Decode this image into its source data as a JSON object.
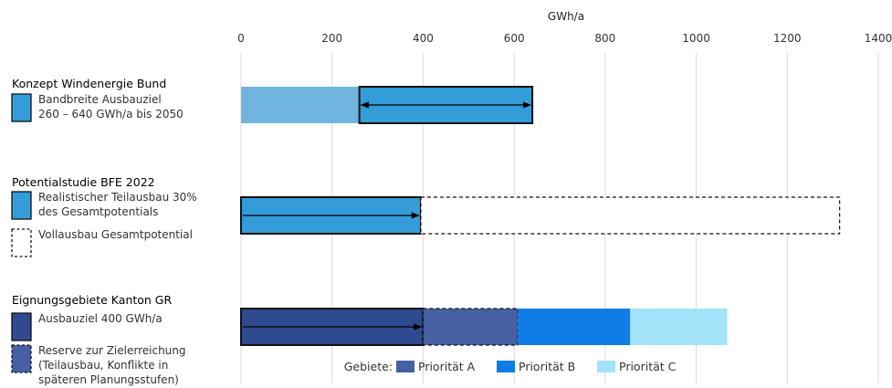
{
  "chart_data": {
    "type": "bar",
    "orientation": "horizontal",
    "xlabel": "GWh/a",
    "xlim": [
      0,
      1400
    ],
    "ticks": [
      "0",
      "200",
      "400",
      "600",
      "800",
      "1000",
      "1200",
      "1400"
    ],
    "tick_values": [
      0,
      200,
      400,
      600,
      800,
      1000,
      1200,
      1400
    ],
    "grid": "vertical",
    "groups": [
      {
        "title": "Konzept Windenergie Bund",
        "legend": [
          {
            "lines": [
              "Bandbreite Ausbauziel",
              "260 – 640 GWh/a bis 2050"
            ],
            "style": "solid",
            "color": "#339cd9"
          }
        ],
        "segments": [
          {
            "from": 0,
            "to": 260,
            "color": "#6fb5e0",
            "style": "solid",
            "border": false
          },
          {
            "from": 260,
            "to": 640,
            "color": "#339cd9",
            "style": "solid",
            "border": true
          }
        ],
        "arrow": {
          "from": 260,
          "to": 640,
          "double": true
        }
      },
      {
        "title": "Potentialstudie BFE 2022",
        "legend": [
          {
            "lines": [
              "Realistischer Teilausbau 30%",
              "des Gesamtpotentials"
            ],
            "style": "solid",
            "color": "#339cd9"
          },
          {
            "lines": [
              "Vollausbau Gesamtpotential"
            ],
            "style": "dashed",
            "color": "#ffffff"
          }
        ],
        "segments": [
          {
            "from": 0,
            "to": 395,
            "color": "#339cd9",
            "style": "solid",
            "border": true
          },
          {
            "from": 395,
            "to": 1315,
            "color": "#ffffff",
            "style": "dashed",
            "border": true
          }
        ],
        "arrow": {
          "from": 0,
          "to": 395,
          "double": false
        }
      },
      {
        "title": "Eignungsgebiete Kanton GR",
        "legend": [
          {
            "lines": [
              "Ausbauziel 400 GWh/a"
            ],
            "style": "solid",
            "color": "#2f4a8f"
          },
          {
            "lines": [
              "Reserve zur Zielerreichung",
              "(Teilausbau, Konflikte in",
              "späteren Planungsstufen)"
            ],
            "style": "dashed",
            "color": "#4760a3"
          }
        ],
        "segments": [
          {
            "from": 0,
            "to": 400,
            "color": "#2f4a8f",
            "style": "solid",
            "border": true
          },
          {
            "from": 400,
            "to": 608,
            "color": "#4760a3",
            "style": "dashed",
            "border": true
          },
          {
            "from": 608,
            "to": 855,
            "color": "#0f7de6",
            "style": "solid",
            "border": false
          },
          {
            "from": 855,
            "to": 1068,
            "color": "#a3e3fa",
            "style": "solid",
            "border": false
          }
        ],
        "arrow": {
          "from": 0,
          "to": 400,
          "double": false
        }
      }
    ],
    "gebiete_legend": {
      "label": "Gebiete:",
      "items": [
        {
          "name": "Priorität A",
          "color": "#4760a3"
        },
        {
          "name": "Priorität B",
          "color": "#0f7de6"
        },
        {
          "name": "Priorität C",
          "color": "#a3e3fa"
        }
      ]
    }
  }
}
